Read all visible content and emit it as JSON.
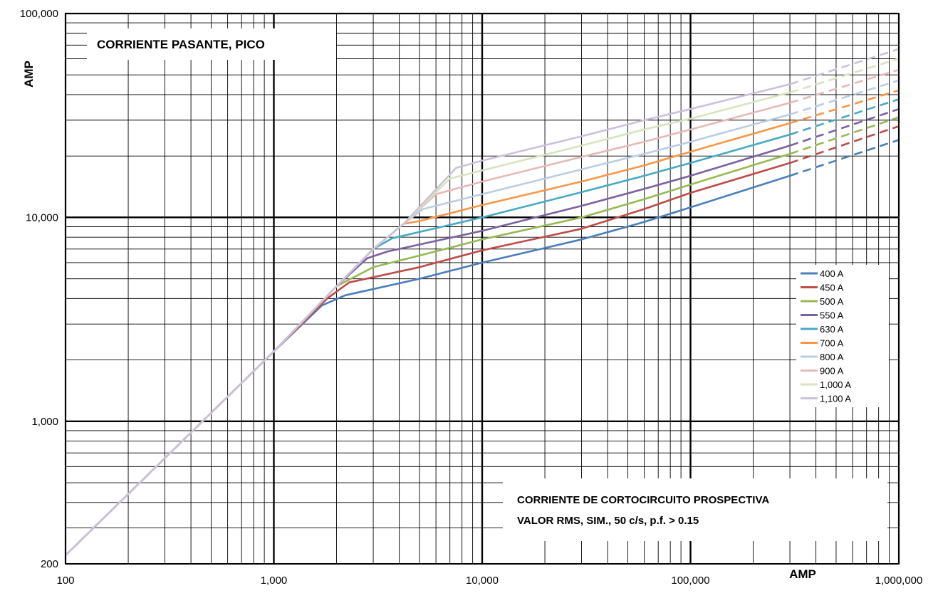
{
  "chart_data": {
    "type": "line",
    "title": "CORRIENTE PASANTE, PICO",
    "xlabel": "AMP",
    "ylabel": "AMP",
    "x_scale": "log",
    "y_scale": "log",
    "xlim": [
      100,
      1000000
    ],
    "ylim": [
      200,
      100000
    ],
    "grid": true,
    "legend_position": "right",
    "x_tick_labels": [
      "100",
      "1,000",
      "10,000",
      "100,000",
      "1,000,000"
    ],
    "x_tick_values": [
      100,
      1000,
      10000,
      100000,
      1000000
    ],
    "y_tick_labels": [
      "200",
      "1,000",
      "10,000",
      "100,000"
    ],
    "y_tick_values": [
      200,
      1000,
      10000,
      100000
    ],
    "annotation": [
      "CORRIENTE DE CORTOCIRCUITO PROSPECTIVA",
      "VALOR RMS, SIM., 50 c/s, p.f. > 0.15"
    ],
    "dashed_from_x": 300000,
    "series": [
      {
        "name": "400 A",
        "color": "#4a7ebb",
        "points": [
          [
            100,
            220
          ],
          [
            1000,
            2200
          ],
          [
            1700,
            3700
          ],
          [
            2200,
            4150
          ],
          [
            5000,
            5000
          ],
          [
            10000,
            6000
          ],
          [
            30000,
            7800
          ],
          [
            60000,
            9500
          ],
          [
            100000,
            11200
          ],
          [
            300000,
            16000
          ],
          [
            1000000,
            24000
          ]
        ]
      },
      {
        "name": "450 A",
        "color": "#be4b48",
        "points": [
          [
            100,
            220
          ],
          [
            1000,
            2200
          ],
          [
            1800,
            4000
          ],
          [
            2300,
            4800
          ],
          [
            5000,
            5700
          ],
          [
            10000,
            6900
          ],
          [
            30000,
            8800
          ],
          [
            60000,
            11000
          ],
          [
            100000,
            13200
          ],
          [
            300000,
            18500
          ],
          [
            1000000,
            28000
          ]
        ]
      },
      {
        "name": "500 A",
        "color": "#98b954",
        "points": [
          [
            100,
            220
          ],
          [
            1000,
            2200
          ],
          [
            2000,
            4600
          ],
          [
            3000,
            5700
          ],
          [
            5000,
            6500
          ],
          [
            10000,
            7800
          ],
          [
            30000,
            10000
          ],
          [
            60000,
            12300
          ],
          [
            100000,
            14500
          ],
          [
            300000,
            20500
          ],
          [
            1000000,
            31000
          ]
        ]
      },
      {
        "name": "550 A",
        "color": "#7d60a0",
        "points": [
          [
            100,
            220
          ],
          [
            1000,
            2200
          ],
          [
            2000,
            4600
          ],
          [
            2800,
            6300
          ],
          [
            3500,
            6800
          ],
          [
            10000,
            8600
          ],
          [
            30000,
            11400
          ],
          [
            60000,
            13800
          ],
          [
            100000,
            16000
          ],
          [
            300000,
            22500
          ],
          [
            1000000,
            34000
          ]
        ]
      },
      {
        "name": "630 A",
        "color": "#46aac5",
        "points": [
          [
            100,
            220
          ],
          [
            1000,
            2200
          ],
          [
            2000,
            4600
          ],
          [
            3000,
            7000
          ],
          [
            3700,
            7900
          ],
          [
            10000,
            10000
          ],
          [
            30000,
            13300
          ],
          [
            60000,
            16000
          ],
          [
            100000,
            18500
          ],
          [
            300000,
            25500
          ],
          [
            1000000,
            38000
          ]
        ]
      },
      {
        "name": "700 A",
        "color": "#f79646",
        "points": [
          [
            100,
            220
          ],
          [
            1000,
            2200
          ],
          [
            2000,
            4600
          ],
          [
            3000,
            7000
          ],
          [
            4200,
            9300
          ],
          [
            5000,
            9600
          ],
          [
            10000,
            11500
          ],
          [
            30000,
            15000
          ],
          [
            60000,
            18000
          ],
          [
            100000,
            21000
          ],
          [
            300000,
            29000
          ],
          [
            1000000,
            42000
          ]
        ]
      },
      {
        "name": "800 A",
        "color": "#b9cde5",
        "points": [
          [
            100,
            220
          ],
          [
            1000,
            2200
          ],
          [
            2000,
            4600
          ],
          [
            3000,
            7000
          ],
          [
            4200,
            9300
          ],
          [
            5200,
            11000
          ],
          [
            10000,
            13000
          ],
          [
            30000,
            17200
          ],
          [
            60000,
            20500
          ],
          [
            100000,
            23500
          ],
          [
            300000,
            32000
          ],
          [
            1000000,
            47000
          ]
        ]
      },
      {
        "name": "900 A",
        "color": "#e6b9b8",
        "points": [
          [
            100,
            220
          ],
          [
            1000,
            2200
          ],
          [
            2000,
            4600
          ],
          [
            3000,
            7000
          ],
          [
            4200,
            9300
          ],
          [
            6000,
            13000
          ],
          [
            10000,
            15000
          ],
          [
            30000,
            19800
          ],
          [
            60000,
            23500
          ],
          [
            100000,
            27000
          ],
          [
            300000,
            36500
          ],
          [
            1000000,
            53000
          ]
        ]
      },
      {
        "name": "1,000 A",
        "color": "#d7e4bd",
        "points": [
          [
            100,
            220
          ],
          [
            1000,
            2200
          ],
          [
            2000,
            4600
          ],
          [
            3000,
            7000
          ],
          [
            4200,
            9300
          ],
          [
            7000,
            15500
          ],
          [
            10000,
            17000
          ],
          [
            30000,
            22500
          ],
          [
            60000,
            27000
          ],
          [
            100000,
            30500
          ],
          [
            300000,
            41000
          ],
          [
            1000000,
            60000
          ]
        ]
      },
      {
        "name": "1,100 A",
        "color": "#ccc1da",
        "points": [
          [
            100,
            220
          ],
          [
            1000,
            2200
          ],
          [
            2000,
            4600
          ],
          [
            3000,
            7000
          ],
          [
            4200,
            9300
          ],
          [
            7500,
            17500
          ],
          [
            10000,
            19000
          ],
          [
            30000,
            25000
          ],
          [
            60000,
            30000
          ],
          [
            100000,
            34000
          ],
          [
            300000,
            45000
          ],
          [
            1000000,
            67000
          ]
        ]
      }
    ]
  }
}
